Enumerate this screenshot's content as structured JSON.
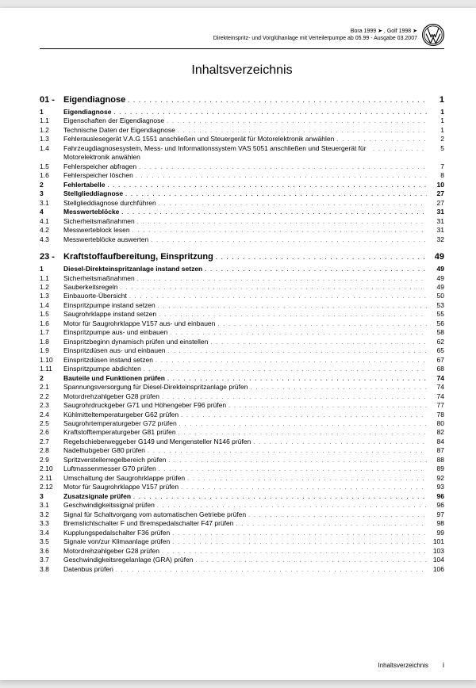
{
  "header": {
    "line1": "Bora 1999 ➤ , Golf 1998 ➤",
    "line2": "Direkteinspritz- und Vorglühanlage mit Verteilerpumpe ab 05.99 - Ausgabe 03.2007"
  },
  "title": "Inhaltsverzeichnis",
  "chapters": [
    {
      "num": "01 -",
      "label": "Eigendiagnose",
      "page": "1",
      "sections": [
        {
          "num": "1",
          "label": "Eigendiagnose",
          "page": "1",
          "bold": true
        },
        {
          "num": "1.1",
          "label": "Eigenschaften der Eigendiagnose",
          "page": "1"
        },
        {
          "num": "1.2",
          "label": "Technische Daten der Eigendiagnose",
          "page": "1"
        },
        {
          "num": "1.3",
          "label": "Fehlerauslesegerät V.A.G 1551 anschließen und Steuergerät für Motorelektronik anwählen",
          "page": "2",
          "multiline": true
        },
        {
          "num": "1.4",
          "label": "Fahrzeugdiagnosesystem, Mess- und Informationssystem VAS 5051 anschließen und Steuergerät für Motorelektronik anwählen",
          "page": "5",
          "multiline": true
        },
        {
          "num": "1.5",
          "label": "Fehlerspeicher abfragen",
          "page": "7"
        },
        {
          "num": "1.6",
          "label": "Fehlerspeicher löschen",
          "page": "8"
        },
        {
          "num": "2",
          "label": "Fehlertabelle",
          "page": "10",
          "bold": true
        },
        {
          "num": "3",
          "label": "Stellglieddiagnose",
          "page": "27",
          "bold": true
        },
        {
          "num": "3.1",
          "label": "Stellglieddiagnose durchführen",
          "page": "27"
        },
        {
          "num": "4",
          "label": "Messwerteblöcke",
          "page": "31",
          "bold": true
        },
        {
          "num": "4.1",
          "label": "Sicherheitsmaßnahmen",
          "page": "31"
        },
        {
          "num": "4.2",
          "label": "Messwerteblock lesen",
          "page": "31"
        },
        {
          "num": "4.3",
          "label": "Messwerteblöcke auswerten",
          "page": "32"
        }
      ]
    },
    {
      "num": "23 -",
      "label": "Kraftstoffaufbereitung, Einspritzung",
      "page": "49",
      "sections": [
        {
          "num": "1",
          "label": "Diesel-Direkteinspritzanlage instand setzen",
          "page": "49",
          "bold": true
        },
        {
          "num": "1.1",
          "label": "Sicherheitsmaßnahmen",
          "page": "49"
        },
        {
          "num": "1.2",
          "label": "Sauberkeitsregeln",
          "page": "49"
        },
        {
          "num": "1.3",
          "label": "Einbauorte-Übersicht",
          "page": "50"
        },
        {
          "num": "1.4",
          "label": "Einspritzpumpe instand setzen",
          "page": "53"
        },
        {
          "num": "1.5",
          "label": "Saugrohrklappe instand setzen",
          "page": "55"
        },
        {
          "num": "1.6",
          "label": "Motor für Saugrohrklappe V157 aus- und einbauen",
          "page": "56"
        },
        {
          "num": "1.7",
          "label": "Einspritzpumpe aus- und einbauen",
          "page": "58"
        },
        {
          "num": "1.8",
          "label": "Einspritzbeginn dynamisch prüfen und einstellen",
          "page": "62"
        },
        {
          "num": "1.9",
          "label": "Einspritzdüsen aus- und einbauen",
          "page": "65"
        },
        {
          "num": "1.10",
          "label": "Einspritzdüsen instand setzen",
          "page": "67"
        },
        {
          "num": "1.11",
          "label": "Einspritzpumpe abdichten",
          "page": "68"
        },
        {
          "num": "2",
          "label": "Bauteile und Funktionen prüfen",
          "page": "74",
          "bold": true
        },
        {
          "num": "2.1",
          "label": "Spannungsversorgung für Diesel-Direkteinspritzanlage prüfen",
          "page": "74"
        },
        {
          "num": "2.2",
          "label": "Motordrehzahlgeber G28 prüfen",
          "page": "74"
        },
        {
          "num": "2.3",
          "label": "Saugrohrdruckgeber G71 und Höhengeber F96 prüfen",
          "page": "77"
        },
        {
          "num": "2.4",
          "label": "Kühlmitteltemperaturgeber G62 prüfen",
          "page": "78"
        },
        {
          "num": "2.5",
          "label": "Saugrohrtemperaturgeber G72 prüfen",
          "page": "80"
        },
        {
          "num": "2.6",
          "label": "Kraftstofftemperaturgeber G81 prüfen",
          "page": "82"
        },
        {
          "num": "2.7",
          "label": "Regelschieberweggeber G149 und Mengensteller N146 prüfen",
          "page": "84"
        },
        {
          "num": "2.8",
          "label": "Nadelhubgeber G80 prüfen",
          "page": "87"
        },
        {
          "num": "2.9",
          "label": "Spritzverstellerregelbereich prüfen",
          "page": "88"
        },
        {
          "num": "2.10",
          "label": "Luftmassenmesser G70 prüfen",
          "page": "89"
        },
        {
          "num": "2.11",
          "label": "Umschaltung der Saugrohrklappe prüfen",
          "page": "92"
        },
        {
          "num": "2.12",
          "label": "Motor für Saugrohrklappe V157 prüfen",
          "page": "93"
        },
        {
          "num": "3",
          "label": "Zusatzsignale prüfen",
          "page": "96",
          "bold": true
        },
        {
          "num": "3.1",
          "label": "Geschwindigkeitssignal prüfen",
          "page": "96"
        },
        {
          "num": "3.2",
          "label": "Signal für Schaltvorgang vom automatischen Getriebe prüfen",
          "page": "97"
        },
        {
          "num": "3.3",
          "label": "Bremslichtschalter F und Bremspedalschalter F47 prüfen",
          "page": "98"
        },
        {
          "num": "3.4",
          "label": "Kupplungspedalschalter F36 prüfen",
          "page": "99"
        },
        {
          "num": "3.5",
          "label": "Signale von/zur Klimaanlage prüfen",
          "page": "101"
        },
        {
          "num": "3.6",
          "label": "Motordrehzahlgeber G28 prüfen",
          "page": "103"
        },
        {
          "num": "3.7",
          "label": "Geschwindigkeitsregelanlage (GRA) prüfen",
          "page": "104"
        },
        {
          "num": "3.8",
          "label": "Datenbus prüfen",
          "page": "106"
        }
      ]
    }
  ],
  "footer": {
    "label": "Inhaltsverzeichnis",
    "page": "i"
  }
}
